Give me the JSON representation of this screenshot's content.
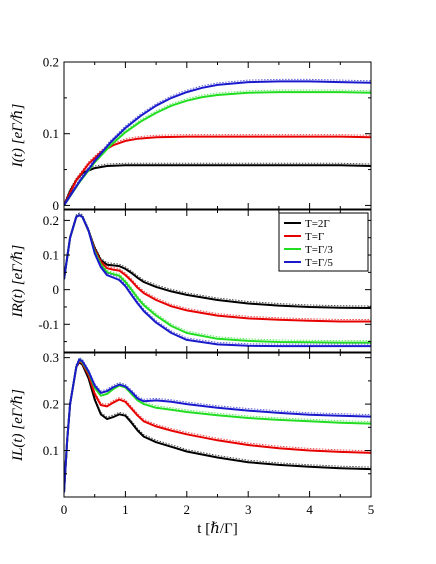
{
  "chart_data": [
    {
      "type": "line",
      "ylabel": "I(t) [eΓ/ℏ]",
      "xlim": [
        0,
        5
      ],
      "ylim": [
        -0.005,
        0.2
      ],
      "x_ticks": [
        0,
        1,
        2,
        3,
        4,
        5
      ],
      "y_ticks": [
        0,
        0.1,
        0.2
      ],
      "y_tick_labels": [
        "0",
        "0.1",
        "0.2"
      ],
      "series": [
        {
          "name": "T=2Γ",
          "color": "#000000",
          "x": [
            0,
            0.1,
            0.2,
            0.3,
            0.5,
            0.7,
            1.0,
            1.5,
            2.0,
            2.5,
            3.0,
            3.5,
            4.0,
            4.5,
            5.0
          ],
          "y": [
            0,
            0.02,
            0.035,
            0.045,
            0.052,
            0.055,
            0.056,
            0.056,
            0.056,
            0.056,
            0.056,
            0.056,
            0.056,
            0.056,
            0.055
          ]
        },
        {
          "name": "T=Γ",
          "color": "#e60000",
          "x": [
            0,
            0.2,
            0.4,
            0.6,
            0.8,
            1.0,
            1.2,
            1.5,
            2.0,
            2.5,
            3.0,
            3.5,
            4.0,
            4.5,
            5.0
          ],
          "y": [
            0,
            0.035,
            0.058,
            0.074,
            0.084,
            0.09,
            0.093,
            0.095,
            0.096,
            0.096,
            0.096,
            0.096,
            0.096,
            0.096,
            0.095
          ]
        },
        {
          "name": "T=Γ/3",
          "color": "#22dd22",
          "x": [
            0,
            0.25,
            0.5,
            0.75,
            1.0,
            1.25,
            1.5,
            1.75,
            2.0,
            2.25,
            2.5,
            3.0,
            3.5,
            4.0,
            4.5,
            5.0
          ],
          "y": [
            0,
            0.032,
            0.06,
            0.083,
            0.102,
            0.117,
            0.129,
            0.139,
            0.146,
            0.151,
            0.154,
            0.157,
            0.158,
            0.158,
            0.158,
            0.157
          ]
        },
        {
          "name": "T=Γ/5",
          "color": "#1a1acc",
          "x": [
            0,
            0.25,
            0.5,
            0.75,
            1.0,
            1.25,
            1.5,
            1.75,
            2.0,
            2.25,
            2.5,
            3.0,
            3.5,
            4.0,
            4.5,
            5.0
          ],
          "y": [
            0,
            0.033,
            0.062,
            0.087,
            0.108,
            0.125,
            0.139,
            0.15,
            0.158,
            0.164,
            0.168,
            0.172,
            0.173,
            0.173,
            0.172,
            0.171
          ]
        }
      ]
    },
    {
      "type": "line",
      "ylabel": "IR(t) [eΓ/ℏ]",
      "xlim": [
        0,
        5
      ],
      "ylim": [
        -0.18,
        0.23
      ],
      "x_ticks": [
        0,
        1,
        2,
        3,
        4,
        5
      ],
      "y_ticks": [
        -0.1,
        0,
        0.1,
        0.2
      ],
      "y_tick_labels": [
        "-0.1",
        "0",
        "0.1",
        "0.2"
      ],
      "legend": {
        "position": "top-right",
        "entries": [
          "T=2Γ",
          "T=Γ",
          "T=Γ/3",
          "T=Γ/5"
        ]
      },
      "series": [
        {
          "name": "T=2Γ",
          "color": "#000000",
          "x": [
            0,
            0.1,
            0.2,
            0.25,
            0.3,
            0.4,
            0.5,
            0.6,
            0.7,
            0.8,
            0.9,
            1.0,
            1.1,
            1.2,
            1.3,
            1.5,
            1.75,
            2.0,
            2.5,
            3.0,
            3.5,
            4.0,
            4.5,
            5.0
          ],
          "y": [
            0.03,
            0.15,
            0.21,
            0.215,
            0.21,
            0.17,
            0.12,
            0.085,
            0.072,
            0.07,
            0.068,
            0.06,
            0.048,
            0.034,
            0.022,
            0.008,
            -0.005,
            -0.015,
            -0.03,
            -0.04,
            -0.046,
            -0.05,
            -0.052,
            -0.053
          ]
        },
        {
          "name": "T=Γ",
          "color": "#e60000",
          "x": [
            0,
            0.1,
            0.2,
            0.25,
            0.3,
            0.4,
            0.5,
            0.6,
            0.7,
            0.8,
            0.9,
            1.0,
            1.1,
            1.2,
            1.3,
            1.5,
            1.75,
            2.0,
            2.5,
            3.0,
            3.5,
            4.0,
            4.5,
            5.0
          ],
          "y": [
            0.03,
            0.15,
            0.21,
            0.215,
            0.21,
            0.17,
            0.115,
            0.08,
            0.062,
            0.058,
            0.055,
            0.042,
            0.025,
            0.005,
            -0.01,
            -0.03,
            -0.048,
            -0.06,
            -0.075,
            -0.083,
            -0.087,
            -0.09,
            -0.092,
            -0.092
          ]
        },
        {
          "name": "T=Γ/3",
          "color": "#22dd22",
          "x": [
            0,
            0.1,
            0.2,
            0.25,
            0.3,
            0.4,
            0.5,
            0.6,
            0.7,
            0.8,
            0.9,
            1.0,
            1.1,
            1.2,
            1.3,
            1.5,
            1.75,
            2.0,
            2.5,
            3.0,
            3.5,
            4.0,
            4.5,
            5.0
          ],
          "y": [
            0.03,
            0.15,
            0.21,
            0.215,
            0.21,
            0.17,
            0.11,
            0.072,
            0.05,
            0.045,
            0.04,
            0.022,
            0.0,
            -0.025,
            -0.045,
            -0.075,
            -0.105,
            -0.125,
            -0.142,
            -0.148,
            -0.151,
            -0.152,
            -0.153,
            -0.153
          ]
        },
        {
          "name": "T=Γ/5",
          "color": "#1a1acc",
          "x": [
            0,
            0.1,
            0.2,
            0.25,
            0.3,
            0.4,
            0.5,
            0.6,
            0.7,
            0.8,
            0.9,
            1.0,
            1.1,
            1.2,
            1.3,
            1.5,
            1.75,
            2.0,
            2.5,
            3.0,
            3.5,
            4.0,
            4.5,
            5.0
          ],
          "y": [
            0.03,
            0.15,
            0.21,
            0.215,
            0.21,
            0.17,
            0.105,
            0.065,
            0.042,
            0.035,
            0.028,
            0.01,
            -0.015,
            -0.04,
            -0.062,
            -0.095,
            -0.125,
            -0.145,
            -0.158,
            -0.162,
            -0.163,
            -0.163,
            -0.163,
            -0.163
          ]
        }
      ]
    },
    {
      "type": "line",
      "ylabel": "IL(t) [eΓ/ℏ]",
      "xlim": [
        0,
        5
      ],
      "ylim": [
        0,
        0.31
      ],
      "x_ticks": [
        0,
        1,
        2,
        3,
        4,
        5
      ],
      "x_tick_labels": [
        "0",
        "1",
        "2",
        "3",
        "4",
        "5"
      ],
      "y_ticks": [
        0.1,
        0.2,
        0.3
      ],
      "y_tick_labels": [
        "0.1",
        "0.2",
        "0.3"
      ],
      "xlabel": "t [ℏ/Γ]",
      "series": [
        {
          "name": "T=2Γ",
          "color": "#000000",
          "x": [
            0,
            0.05,
            0.1,
            0.2,
            0.25,
            0.3,
            0.4,
            0.5,
            0.6,
            0.7,
            0.8,
            0.9,
            1.0,
            1.1,
            1.2,
            1.3,
            1.5,
            1.75,
            2.0,
            2.5,
            3.0,
            3.5,
            4.0,
            4.5,
            5.0
          ],
          "y": [
            0.01,
            0.12,
            0.2,
            0.28,
            0.29,
            0.285,
            0.255,
            0.21,
            0.178,
            0.168,
            0.172,
            0.178,
            0.175,
            0.16,
            0.143,
            0.13,
            0.118,
            0.108,
            0.098,
            0.085,
            0.075,
            0.069,
            0.065,
            0.062,
            0.06
          ]
        },
        {
          "name": "T=Γ",
          "color": "#e60000",
          "x": [
            0,
            0.05,
            0.1,
            0.2,
            0.25,
            0.3,
            0.4,
            0.5,
            0.6,
            0.7,
            0.8,
            0.9,
            1.0,
            1.1,
            1.2,
            1.3,
            1.5,
            1.75,
            2.0,
            2.5,
            3.0,
            3.5,
            4.0,
            4.5,
            5.0
          ],
          "y": [
            0.01,
            0.12,
            0.2,
            0.28,
            0.292,
            0.288,
            0.262,
            0.222,
            0.198,
            0.195,
            0.203,
            0.21,
            0.205,
            0.19,
            0.175,
            0.163,
            0.152,
            0.143,
            0.135,
            0.122,
            0.112,
            0.105,
            0.1,
            0.097,
            0.095
          ]
        },
        {
          "name": "T=Γ/3",
          "color": "#22dd22",
          "x": [
            0,
            0.05,
            0.1,
            0.2,
            0.25,
            0.3,
            0.4,
            0.5,
            0.6,
            0.7,
            0.8,
            0.9,
            1.0,
            1.1,
            1.2,
            1.3,
            1.5,
            1.75,
            2.0,
            2.5,
            3.0,
            3.5,
            4.0,
            4.5,
            5.0
          ],
          "y": [
            0.01,
            0.12,
            0.2,
            0.28,
            0.295,
            0.29,
            0.268,
            0.235,
            0.218,
            0.222,
            0.232,
            0.24,
            0.236,
            0.222,
            0.208,
            0.2,
            0.192,
            0.188,
            0.183,
            0.176,
            0.17,
            0.166,
            0.163,
            0.16,
            0.158
          ]
        },
        {
          "name": "T=Γ/5",
          "color": "#1a1acc",
          "x": [
            0,
            0.05,
            0.1,
            0.2,
            0.25,
            0.3,
            0.4,
            0.5,
            0.6,
            0.7,
            0.8,
            0.9,
            1.0,
            1.1,
            1.2,
            1.3,
            1.5,
            1.75,
            2.0,
            2.5,
            3.0,
            3.5,
            4.0,
            4.5,
            5.0
          ],
          "y": [
            0.01,
            0.12,
            0.2,
            0.28,
            0.296,
            0.292,
            0.27,
            0.24,
            0.224,
            0.228,
            0.236,
            0.242,
            0.238,
            0.226,
            0.212,
            0.206,
            0.208,
            0.205,
            0.2,
            0.192,
            0.186,
            0.181,
            0.177,
            0.175,
            0.173
          ]
        }
      ]
    }
  ]
}
